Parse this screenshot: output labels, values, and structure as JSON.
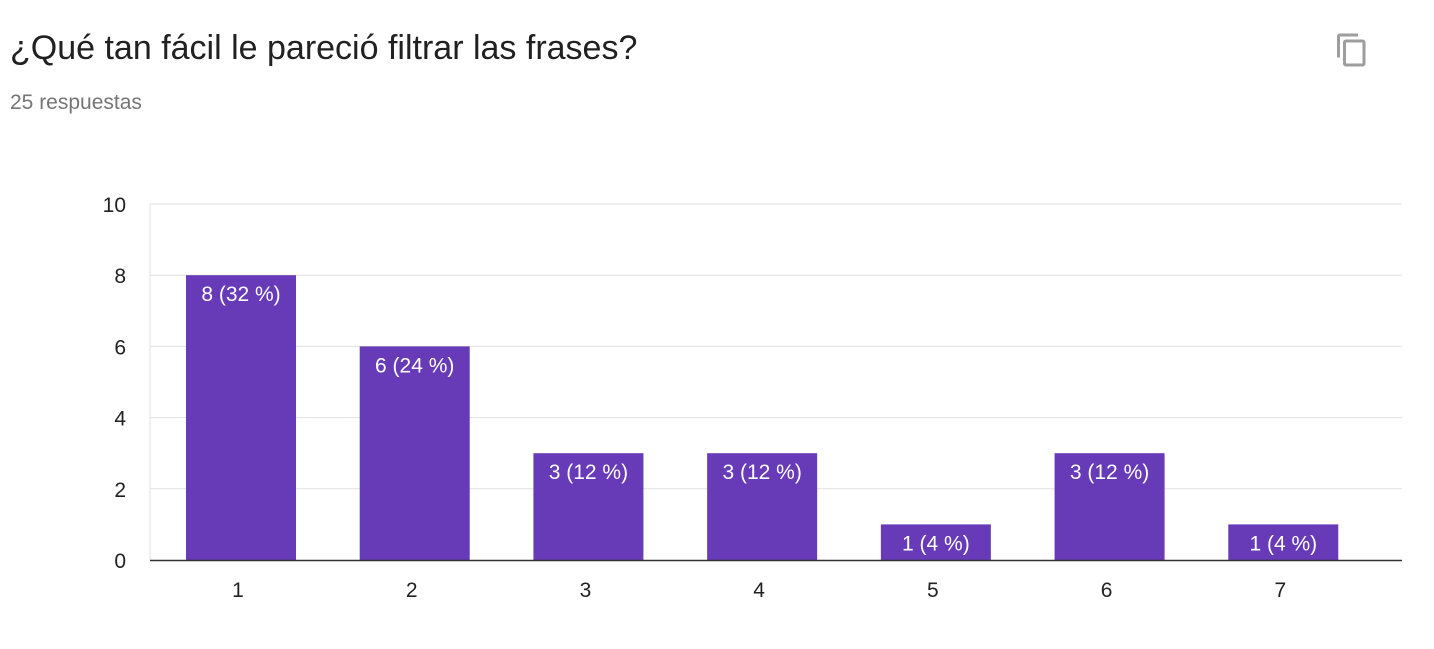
{
  "question": {
    "title": "¿Qué tan fácil le pareció filtrar las frases?",
    "responses_label": "25 respuestas"
  },
  "toolbar": {
    "copy_icon": "copy-icon"
  },
  "colors": {
    "bar": "#673ab7",
    "grid": "#e0e0e0",
    "axis": "#333333",
    "tick_text": "#222222",
    "label_text": "#ffffff"
  },
  "chart_data": {
    "type": "bar",
    "title": "",
    "xlabel": "",
    "ylabel": "",
    "categories": [
      "1",
      "2",
      "3",
      "4",
      "5",
      "6",
      "7"
    ],
    "values": [
      8,
      6,
      3,
      3,
      1,
      3,
      1
    ],
    "data_labels": [
      "8 (32 %)",
      "6 (24 %)",
      "3 (12 %)",
      "3 (12 %)",
      "1 (4 %)",
      "3 (12 %)",
      "1 (4 %)"
    ],
    "ylim": [
      0,
      10
    ],
    "yticks": [
      0,
      2,
      4,
      6,
      8,
      10
    ],
    "grid": true,
    "legend": "none"
  }
}
